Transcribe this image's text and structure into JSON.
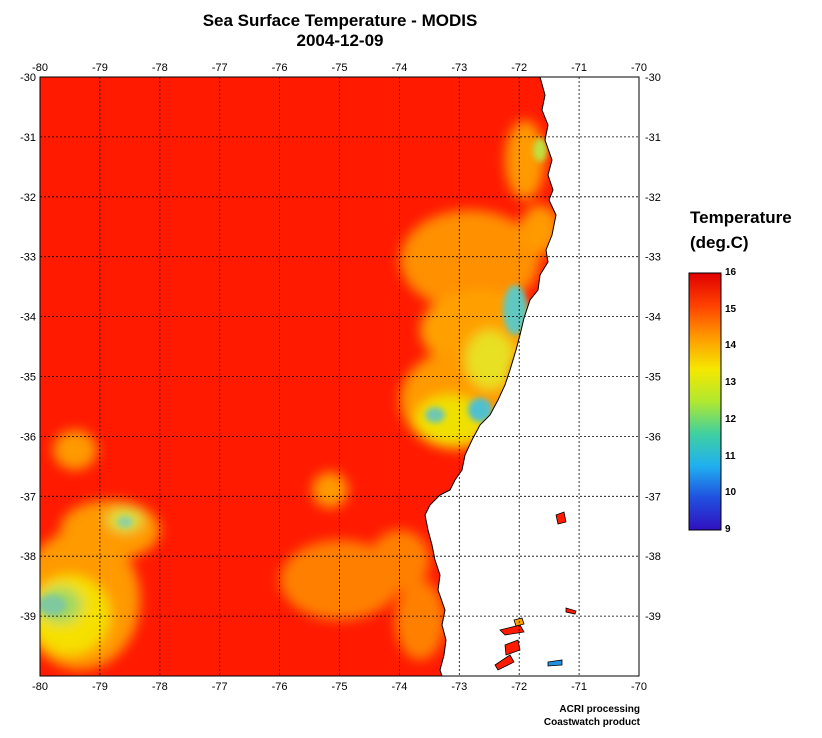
{
  "title": "Sea Surface Temperature - MODIS",
  "date": "2004-12-09",
  "legend": {
    "title_line1": "Temperature",
    "title_line2": "(deg.C)",
    "min": 9,
    "max": 16,
    "labels": [
      "16",
      "15",
      "14",
      "13",
      "12",
      "11",
      "10",
      "9"
    ],
    "colors": [
      "#e00000",
      "#ff4000",
      "#ff9a00",
      "#f5e800",
      "#b0e830",
      "#40d0a0",
      "#20b0f0",
      "#2050e0",
      "#3010c0"
    ]
  },
  "credits": {
    "line1": "ACRI processing",
    "line2": "Coastwatch product"
  },
  "map": {
    "lon_range": [
      -80,
      -70
    ],
    "lat_range": [
      -40,
      -30
    ],
    "lon_ticks": [
      "-80",
      "-79",
      "-78",
      "-77",
      "-76",
      "-75",
      "-74",
      "-73",
      "-72",
      "-71",
      "-70"
    ],
    "lat_ticks": [
      "-30",
      "-31",
      "-32",
      "-33",
      "-34",
      "-35",
      "-36",
      "-37",
      "-38",
      "-39"
    ],
    "grid": true,
    "ocean_color": "#ff1a00",
    "land_color": "#ffffff"
  }
}
